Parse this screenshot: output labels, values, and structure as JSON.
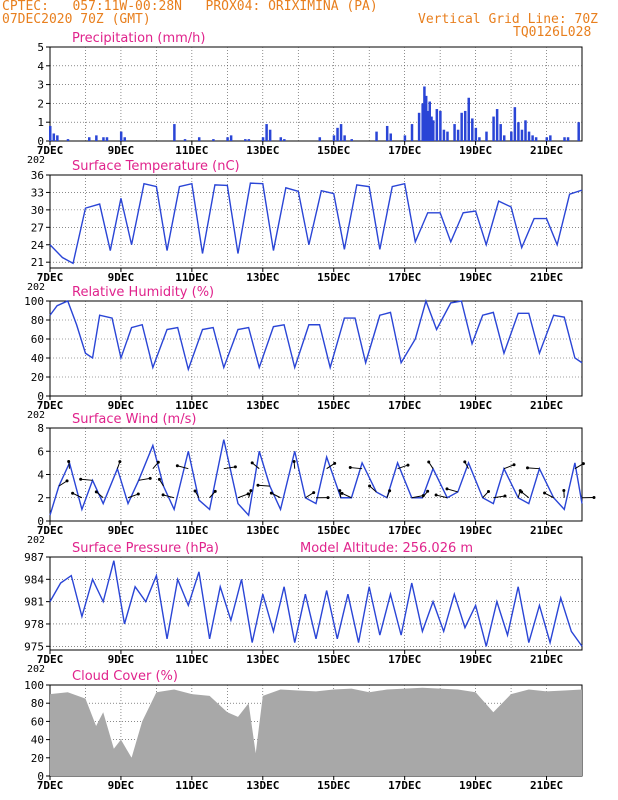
{
  "header": {
    "line1": "CPTEC:   057:11W-00:28N   PROX04: ORIXIMINA (PA)",
    "line2": "07DEC2020 70Z (GMT)",
    "right1": "Vertical Grid Line: 70Z",
    "right2": "TQ0126L028"
  },
  "colors": {
    "header": "#e87f1e",
    "titles": "#e0238c",
    "line": "#2a45d6",
    "cloud": "#a8a8a8",
    "axis": "#000000"
  },
  "x_axis": {
    "start_day": 7,
    "end_day": 22,
    "ticks": [
      {
        "day": 7,
        "label": "7DEC"
      },
      {
        "day": 9,
        "label": "9DEC"
      },
      {
        "day": 11,
        "label": "11DEC"
      },
      {
        "day": 13,
        "label": "13DEC"
      },
      {
        "day": 15,
        "label": "15DEC"
      },
      {
        "day": 17,
        "label": "17DEC"
      },
      {
        "day": 19,
        "label": "19DEC"
      },
      {
        "day": 21,
        "label": "21DEC"
      }
    ],
    "year_stub": "202"
  },
  "panels": {
    "precip": {
      "title": "Precipitation (mm/h)",
      "yticks": [
        "0",
        "1",
        "2",
        "3",
        "4",
        "5"
      ]
    },
    "temp": {
      "title": "Surface Temperature (nC)",
      "yticks": [
        "21",
        "24",
        "27",
        "30",
        "33",
        "36"
      ]
    },
    "rh": {
      "title": "Relative Humidity (%)",
      "yticks": [
        "0",
        "20",
        "40",
        "60",
        "80",
        "100"
      ]
    },
    "wind": {
      "title": "Surface Wind (m/s)",
      "yticks": [
        "0",
        "2",
        "4",
        "6",
        "8"
      ]
    },
    "press": {
      "title": "Surface Pressure (hPa)",
      "extra": "Model Altitude: 256.026 m",
      "yticks": [
        "975",
        "978",
        "981",
        "984",
        "987"
      ]
    },
    "cloud": {
      "title": "Cloud Cover (%)",
      "yticks": [
        "0",
        "20",
        "40",
        "60",
        "80",
        "100"
      ]
    }
  },
  "chart_data": [
    {
      "type": "bar",
      "title": "Precipitation (mm/h)",
      "ylim": [
        0,
        5
      ],
      "x_days": [
        7.0,
        7.1,
        7.2,
        7.5,
        8.1,
        8.3,
        8.5,
        8.6,
        9.0,
        9.1,
        10.5,
        10.8,
        11.2,
        11.6,
        12.0,
        12.1,
        12.5,
        12.6,
        13.0,
        13.1,
        13.2,
        13.5,
        13.6,
        14.6,
        15.0,
        15.1,
        15.2,
        15.3,
        15.5,
        16.2,
        16.5,
        16.6,
        17.0,
        17.2,
        17.4,
        17.5,
        17.55,
        17.6,
        17.65,
        17.7,
        17.75,
        17.8,
        17.9,
        18.0,
        18.1,
        18.2,
        18.4,
        18.5,
        18.6,
        18.7,
        18.8,
        18.9,
        19.0,
        19.1,
        19.3,
        19.5,
        19.6,
        19.7,
        19.8,
        20.0,
        20.1,
        20.2,
        20.3,
        20.4,
        20.5,
        20.6,
        20.7,
        21.0,
        21.1,
        21.5,
        21.6,
        21.9
      ],
      "values": [
        0.8,
        0.4,
        0.3,
        0.1,
        0.2,
        0.3,
        0.2,
        0.2,
        0.5,
        0.2,
        0.9,
        0.1,
        0.2,
        0.1,
        0.2,
        0.3,
        0.1,
        0.1,
        0.2,
        0.9,
        0.6,
        0.2,
        0.1,
        0.2,
        0.3,
        0.7,
        0.9,
        0.3,
        0.1,
        0.5,
        0.8,
        0.4,
        0.3,
        0.9,
        1.5,
        2.0,
        2.9,
        2.4,
        1.6,
        2.1,
        1.3,
        1.1,
        1.7,
        1.6,
        0.6,
        0.5,
        0.9,
        0.6,
        1.5,
        1.6,
        2.3,
        1.2,
        0.7,
        0.2,
        0.5,
        1.3,
        1.7,
        0.9,
        0.3,
        0.5,
        1.8,
        1.0,
        0.6,
        1.1,
        0.5,
        0.3,
        0.2,
        0.2,
        0.3,
        0.2,
        0.2,
        1.0
      ]
    },
    {
      "type": "line",
      "title": "Surface Temperature (nC)",
      "ylim": [
        20,
        36
      ],
      "x": [
        7.0,
        7.35,
        7.65,
        8.0,
        8.4,
        8.7,
        9.0,
        9.3,
        9.65,
        10.0,
        10.3,
        10.65,
        11.0,
        11.3,
        11.65,
        12.0,
        12.3,
        12.65,
        13.0,
        13.3,
        13.65,
        14.0,
        14.3,
        14.65,
        15.0,
        15.3,
        15.65,
        16.0,
        16.3,
        16.65,
        17.0,
        17.3,
        17.65,
        18.0,
        18.3,
        18.65,
        19.0,
        19.3,
        19.65,
        20.0,
        20.3,
        20.65,
        21.0,
        21.3,
        21.65,
        22.0
      ],
      "y": [
        24,
        21.8,
        20.8,
        30.3,
        31,
        23,
        32,
        24,
        34.5,
        34,
        23,
        34,
        34.5,
        22.5,
        34.3,
        34.2,
        22.5,
        34.6,
        34.5,
        23,
        33.8,
        33.2,
        24,
        33.3,
        32.8,
        23.2,
        34.3,
        34,
        23.2,
        34,
        34.5,
        24.5,
        29.5,
        29.5,
        24.5,
        29.5,
        29.8,
        24,
        31.5,
        30.5,
        23.5,
        28.5,
        28.5,
        24,
        32.7,
        33.4
      ]
    },
    {
      "type": "line",
      "title": "Relative Humidity (%)",
      "ylim": [
        0,
        100
      ],
      "x": [
        7.0,
        7.2,
        7.5,
        7.75,
        8.0,
        8.2,
        8.4,
        8.75,
        9.0,
        9.3,
        9.6,
        9.9,
        10.3,
        10.6,
        10.9,
        11.3,
        11.6,
        11.9,
        12.3,
        12.6,
        12.9,
        13.3,
        13.6,
        13.9,
        14.3,
        14.6,
        14.9,
        15.3,
        15.6,
        15.9,
        16.3,
        16.6,
        16.9,
        17.3,
        17.6,
        17.9,
        18.3,
        18.6,
        18.9,
        19.2,
        19.5,
        19.8,
        20.2,
        20.5,
        20.8,
        21.2,
        21.5,
        21.8,
        22.0
      ],
      "y": [
        85,
        95,
        100,
        75,
        45,
        40,
        85,
        82,
        40,
        72,
        75,
        30,
        70,
        72,
        28,
        70,
        72,
        30,
        70,
        72,
        30,
        73,
        75,
        30,
        75,
        75,
        30,
        82,
        82,
        35,
        85,
        88,
        35,
        60,
        100,
        70,
        98,
        100,
        55,
        85,
        88,
        45,
        87,
        87,
        45,
        85,
        83,
        40,
        35
      ]
    },
    {
      "type": "line",
      "title": "Surface Wind (m/s)",
      "ylim": [
        0,
        8
      ],
      "x": [
        7.0,
        7.25,
        7.55,
        7.9,
        8.2,
        8.5,
        8.9,
        9.2,
        9.5,
        9.9,
        10.2,
        10.5,
        10.9,
        11.2,
        11.5,
        11.9,
        12.3,
        12.6,
        12.9,
        13.2,
        13.5,
        13.9,
        14.2,
        14.5,
        14.8,
        15.2,
        15.5,
        15.8,
        16.2,
        16.5,
        16.8,
        17.2,
        17.5,
        17.8,
        18.2,
        18.5,
        18.8,
        19.2,
        19.5,
        19.8,
        20.2,
        20.5,
        20.8,
        21.2,
        21.5,
        21.8,
        22.0
      ],
      "y": [
        0.5,
        3.0,
        5.0,
        1.0,
        3.5,
        1.5,
        4.5,
        1.5,
        3.5,
        6.5,
        3.0,
        1.0,
        6.0,
        1.8,
        1.0,
        7.0,
        1.5,
        0.5,
        6.0,
        3.0,
        1.0,
        6.0,
        2.0,
        1.5,
        5.5,
        2.0,
        2.0,
        5.0,
        2.5,
        2.0,
        5.0,
        2.0,
        2.0,
        4.5,
        2.0,
        2.5,
        5.0,
        2.0,
        1.5,
        4.5,
        2.0,
        1.5,
        4.5,
        2.0,
        1.0,
        5.0,
        1.5
      ]
    },
    {
      "type": "line",
      "title": "Surface Pressure (hPa)",
      "ylim": [
        974.5,
        987
      ],
      "x": [
        7.0,
        7.3,
        7.6,
        7.9,
        8.2,
        8.5,
        8.8,
        9.1,
        9.4,
        9.7,
        10.0,
        10.3,
        10.6,
        10.9,
        11.2,
        11.5,
        11.8,
        12.1,
        12.4,
        12.7,
        13.0,
        13.3,
        13.6,
        13.9,
        14.2,
        14.5,
        14.8,
        15.1,
        15.4,
        15.7,
        16.0,
        16.3,
        16.6,
        16.9,
        17.2,
        17.5,
        17.8,
        18.1,
        18.4,
        18.7,
        19.0,
        19.3,
        19.6,
        19.9,
        20.2,
        20.5,
        20.8,
        21.1,
        21.4,
        21.7,
        22.0
      ],
      "y": [
        981,
        983.5,
        984.5,
        979,
        984,
        981,
        986.5,
        978,
        983,
        981,
        984.5,
        976,
        984,
        980.5,
        985,
        976,
        983,
        978.5,
        984,
        975.5,
        982,
        977,
        983,
        975.5,
        982,
        976,
        982.5,
        976,
        982,
        975.5,
        983,
        976.5,
        982,
        976.5,
        983.5,
        977,
        981,
        977,
        982,
        977.5,
        980.5,
        975,
        981,
        976.5,
        983,
        975.5,
        980.5,
        975.5,
        981.5,
        977,
        975
      ]
    },
    {
      "type": "area",
      "title": "Cloud Cover (%)",
      "ylim": [
        0,
        100
      ],
      "x": [
        7.0,
        7.5,
        8.0,
        8.3,
        8.5,
        8.8,
        9.0,
        9.3,
        9.6,
        10.0,
        10.5,
        11.0,
        11.5,
        12.0,
        12.3,
        12.6,
        12.8,
        13.0,
        13.5,
        14.0,
        14.5,
        15.0,
        15.5,
        16.0,
        16.5,
        17.0,
        17.5,
        18.0,
        18.5,
        19.0,
        19.5,
        20.0,
        20.5,
        21.0,
        21.5,
        22.0
      ],
      "y": [
        90,
        92,
        85,
        55,
        70,
        30,
        40,
        20,
        60,
        92,
        95,
        90,
        88,
        70,
        65,
        80,
        25,
        88,
        95,
        94,
        93,
        95,
        96,
        92,
        95,
        96,
        97,
        96,
        95,
        92,
        70,
        90,
        95,
        93,
        94,
        95
      ]
    }
  ]
}
